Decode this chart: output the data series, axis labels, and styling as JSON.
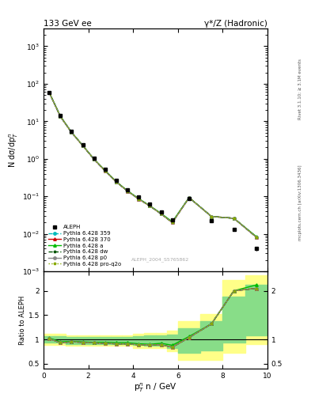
{
  "title_left": "133 GeV ee",
  "title_right": "γ*/Z (Hadronic)",
  "xlabel": "p$^n_T$ n / GeV",
  "ylabel_main": "N dσ/dp$^n_T$$^n$",
  "ylabel_ratio": "Ratio to ALEPH",
  "watermark": "ALEPH_2004_S5765862",
  "right_label_top": "Rivet 3.1.10; ≥ 3.1M events",
  "right_label_bot": "mcplots.cern.ch [arXiv:1306.3436]",
  "aleph_x": [
    0.25,
    0.75,
    1.25,
    1.75,
    2.25,
    2.75,
    3.25,
    3.75,
    4.25,
    4.75,
    5.25,
    5.75,
    6.5,
    7.5,
    8.5,
    9.5
  ],
  "aleph_y": [
    58.0,
    14.5,
    5.3,
    2.4,
    1.05,
    0.52,
    0.265,
    0.152,
    0.096,
    0.062,
    0.038,
    0.024,
    0.088,
    0.022,
    0.013,
    0.004
  ],
  "aleph_yerr": [
    2.5,
    0.7,
    0.28,
    0.13,
    0.06,
    0.03,
    0.016,
    0.01,
    0.007,
    0.004,
    0.003,
    0.002,
    0.006,
    0.002,
    0.001,
    0.0005
  ],
  "mc_x": [
    0.25,
    0.75,
    1.25,
    1.75,
    2.25,
    2.75,
    3.25,
    3.75,
    4.25,
    4.75,
    5.25,
    5.75,
    6.5,
    7.5,
    8.5,
    9.5
  ],
  "mc359_y": [
    59.0,
    13.5,
    5.05,
    2.25,
    0.98,
    0.48,
    0.242,
    0.138,
    0.085,
    0.055,
    0.034,
    0.02,
    0.092,
    0.029,
    0.026,
    0.0082
  ],
  "mc370_y": [
    59.0,
    13.5,
    5.05,
    2.25,
    0.98,
    0.48,
    0.242,
    0.138,
    0.085,
    0.055,
    0.034,
    0.02,
    0.092,
    0.029,
    0.026,
    0.0082
  ],
  "mca_y": [
    59.5,
    13.8,
    5.1,
    2.28,
    0.99,
    0.49,
    0.246,
    0.141,
    0.087,
    0.056,
    0.035,
    0.021,
    0.093,
    0.029,
    0.026,
    0.0085
  ],
  "mcdw_y": [
    59.0,
    13.5,
    5.05,
    2.25,
    0.98,
    0.48,
    0.242,
    0.138,
    0.085,
    0.055,
    0.034,
    0.02,
    0.092,
    0.029,
    0.026,
    0.0082
  ],
  "mcp0_y": [
    59.0,
    13.5,
    5.05,
    2.25,
    0.98,
    0.48,
    0.242,
    0.138,
    0.085,
    0.055,
    0.034,
    0.02,
    0.092,
    0.029,
    0.026,
    0.0082
  ],
  "mcproq2o_y": [
    59.0,
    13.5,
    5.05,
    2.25,
    0.98,
    0.48,
    0.242,
    0.138,
    0.085,
    0.055,
    0.034,
    0.02,
    0.092,
    0.029,
    0.026,
    0.0082
  ],
  "ratio359": [
    1.02,
    0.93,
    0.95,
    0.94,
    0.93,
    0.92,
    0.91,
    0.91,
    0.89,
    0.89,
    0.89,
    0.84,
    1.04,
    1.32,
    2.0,
    2.05
  ],
  "ratio370": [
    1.02,
    0.93,
    0.95,
    0.94,
    0.93,
    0.92,
    0.91,
    0.91,
    0.89,
    0.89,
    0.89,
    0.84,
    1.04,
    1.32,
    2.0,
    2.05
  ],
  "ratioa": [
    1.03,
    0.95,
    0.96,
    0.95,
    0.94,
    0.94,
    0.93,
    0.93,
    0.91,
    0.9,
    0.92,
    0.88,
    1.06,
    1.32,
    2.0,
    2.12
  ],
  "ratiodw": [
    1.02,
    0.93,
    0.95,
    0.94,
    0.93,
    0.92,
    0.91,
    0.91,
    0.89,
    0.89,
    0.89,
    0.84,
    1.04,
    1.32,
    2.0,
    2.05
  ],
  "ratiop0": [
    1.02,
    0.93,
    0.95,
    0.94,
    0.93,
    0.92,
    0.91,
    0.91,
    0.89,
    0.89,
    0.89,
    0.84,
    1.04,
    1.32,
    2.0,
    2.05
  ],
  "ratioproq2o": [
    1.02,
    0.93,
    0.95,
    0.94,
    0.93,
    0.92,
    0.91,
    0.91,
    0.89,
    0.89,
    0.89,
    0.84,
    1.04,
    1.32,
    2.0,
    2.05
  ],
  "band_yellow_edges": [
    0.0,
    0.5,
    1.0,
    1.5,
    2.0,
    2.5,
    3.0,
    3.5,
    4.0,
    4.5,
    5.0,
    5.5,
    6.0,
    7.0,
    8.0,
    9.0,
    10.0
  ],
  "band_yellow_lo": [
    0.88,
    0.88,
    0.87,
    0.87,
    0.87,
    0.87,
    0.87,
    0.87,
    0.83,
    0.82,
    0.82,
    0.76,
    0.58,
    0.58,
    0.72,
    0.9,
    0.9
  ],
  "band_yellow_hi": [
    1.12,
    1.12,
    1.09,
    1.09,
    1.09,
    1.09,
    1.09,
    1.09,
    1.11,
    1.13,
    1.13,
    1.18,
    1.38,
    1.52,
    2.22,
    2.32,
    2.32
  ],
  "band_green_edges": [
    0.0,
    0.5,
    1.0,
    1.5,
    2.0,
    2.5,
    3.0,
    3.5,
    4.0,
    4.5,
    5.0,
    5.5,
    6.0,
    7.0,
    8.0,
    9.0,
    10.0
  ],
  "band_green_lo": [
    0.93,
    0.93,
    0.91,
    0.91,
    0.91,
    0.91,
    0.91,
    0.91,
    0.89,
    0.87,
    0.87,
    0.82,
    0.73,
    0.78,
    0.94,
    1.08,
    1.08
  ],
  "band_green_hi": [
    1.07,
    1.07,
    1.05,
    1.05,
    1.05,
    1.05,
    1.05,
    1.05,
    1.07,
    1.09,
    1.09,
    1.1,
    1.23,
    1.37,
    1.88,
    2.12,
    2.12
  ],
  "color_359": "#00bbbb",
  "color_370": "#cc0000",
  "color_a": "#00bb00",
  "color_dw": "#005500",
  "color_p0": "#888888",
  "color_proq2o": "#88aa00",
  "xlim": [
    0,
    10
  ],
  "ylim_main_lo": 0.001,
  "ylim_main_hi": 3000,
  "ylim_ratio_lo": 0.4,
  "ylim_ratio_hi": 2.4,
  "bg_color": "#ffffff"
}
